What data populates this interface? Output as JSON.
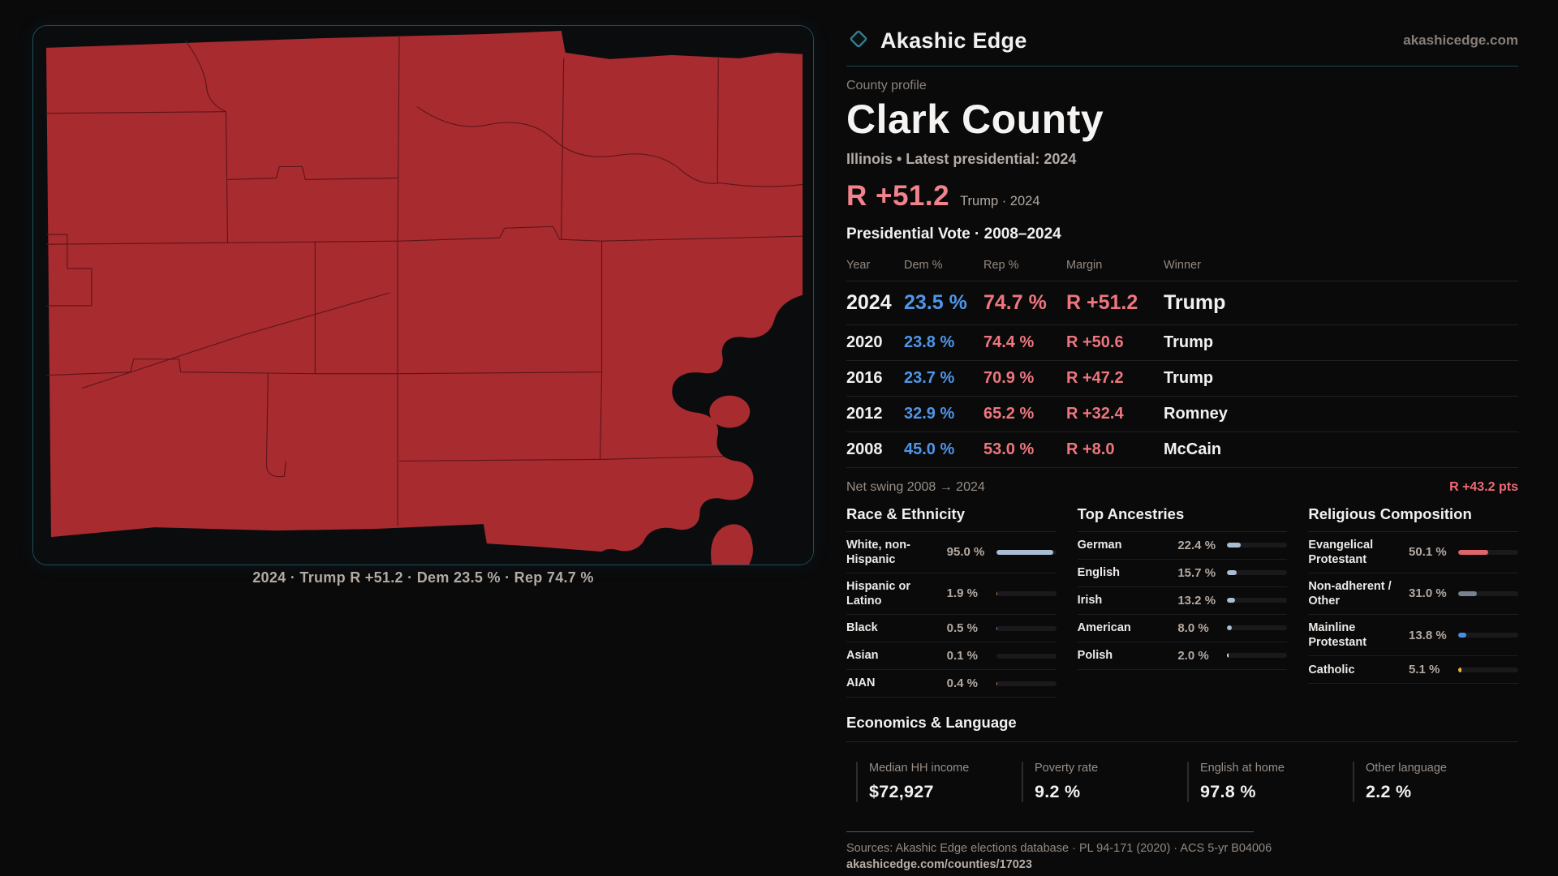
{
  "brand": {
    "name": "Akashic Edge",
    "domain": "akashicedge.com",
    "accent_teal": "#2a6a78"
  },
  "header": {
    "eyebrow": "County profile",
    "title": "Clark County",
    "subtitle": "Illinois • Latest presidential: 2024"
  },
  "headline": {
    "value": "R +51.2",
    "context": "Trump · 2024",
    "color": "#f2838a"
  },
  "table": {
    "title": "Presidential Vote · 2008–2024",
    "columns": [
      "Year",
      "Dem %",
      "Rep %",
      "Margin",
      "Winner"
    ],
    "rows": [
      {
        "year": "2024",
        "dem": "23.5 %",
        "rep": "74.7 %",
        "margin": "R +51.2",
        "winner": "Trump"
      },
      {
        "year": "2020",
        "dem": "23.8 %",
        "rep": "74.4 %",
        "margin": "R +50.6",
        "winner": "Trump"
      },
      {
        "year": "2016",
        "dem": "23.7 %",
        "rep": "70.9 %",
        "margin": "R +47.2",
        "winner": "Trump"
      },
      {
        "year": "2012",
        "dem": "32.9 %",
        "rep": "65.2 %",
        "margin": "R +32.4",
        "winner": "Romney"
      },
      {
        "year": "2008",
        "dem": "45.0 %",
        "rep": "53.0 %",
        "margin": "R +8.0",
        "winner": "McCain"
      }
    ],
    "dem_color": "#4f96e8",
    "rep_color": "#ee767e"
  },
  "net_swing": {
    "label": "Net swing 2008 → 2024",
    "value": "R +43.2 pts"
  },
  "sections": [
    {
      "id": "race",
      "title": "Race & Ethnicity",
      "rows": [
        {
          "label": "White, non-Hispanic",
          "value": "95.0 %",
          "pct": 95.0,
          "color": "#a9bdd3"
        },
        {
          "label": "Hispanic or Latino",
          "value": "1.9 %",
          "pct": 1.9,
          "color": "#df8c3c"
        },
        {
          "label": "Black",
          "value": "0.5 %",
          "pct": 0.5,
          "color": "#8d8df2"
        },
        {
          "label": "Asian",
          "value": "0.1 %",
          "pct": 0.1,
          "color": "#57b894"
        },
        {
          "label": "AIAN",
          "value": "0.4 %",
          "pct": 0.4,
          "color": "#df8c3c"
        }
      ]
    },
    {
      "id": "ancestries",
      "title": "Top Ancestries",
      "rows": [
        {
          "label": "German",
          "value": "22.4 %",
          "pct": 22.4,
          "color": "#a9bdd3"
        },
        {
          "label": "English",
          "value": "15.7 %",
          "pct": 15.7,
          "color": "#a9bdd3"
        },
        {
          "label": "Irish",
          "value": "13.2 %",
          "pct": 13.2,
          "color": "#a9bdd3"
        },
        {
          "label": "American",
          "value": "8.0 %",
          "pct": 8.0,
          "color": "#a9bdd3"
        },
        {
          "label": "Polish",
          "value": "2.0 %",
          "pct": 2.0,
          "color": "#dfe3e8"
        }
      ]
    },
    {
      "id": "religion",
      "title": "Religious Composition",
      "rows": [
        {
          "label": "Evangelical Protestant",
          "value": "50.1 %",
          "pct": 50.1,
          "color": "#e0646c"
        },
        {
          "label": "Non-adherent / Other",
          "value": "31.0 %",
          "pct": 31.0,
          "color": "#79828f"
        },
        {
          "label": "Mainline Protestant",
          "value": "13.8 %",
          "pct": 13.8,
          "color": "#4a90e2"
        },
        {
          "label": "Catholic",
          "value": "5.1 %",
          "pct": 5.1,
          "color": "#e6b43f"
        }
      ]
    }
  ],
  "economics": {
    "title": "Economics & Language",
    "stats": [
      {
        "label": "Median HH income",
        "value": "$72,927"
      },
      {
        "label": "Poverty rate",
        "value": "9.2 %"
      },
      {
        "label": "English at home",
        "value": "97.8 %"
      },
      {
        "label": "Other language",
        "value": "2.2 %"
      }
    ]
  },
  "map": {
    "caption": "2024 · Trump R +51.2 · Dem 23.5 % · Rep 74.7 %",
    "county_fill": "#a72b2f",
    "boundary_color": "#571419"
  },
  "footer": {
    "sources": "Sources: Akashic Edge elections database · PL 94-171 (2020) · ACS 5-yr B04006",
    "url": "akashicedge.com/counties/17023"
  }
}
